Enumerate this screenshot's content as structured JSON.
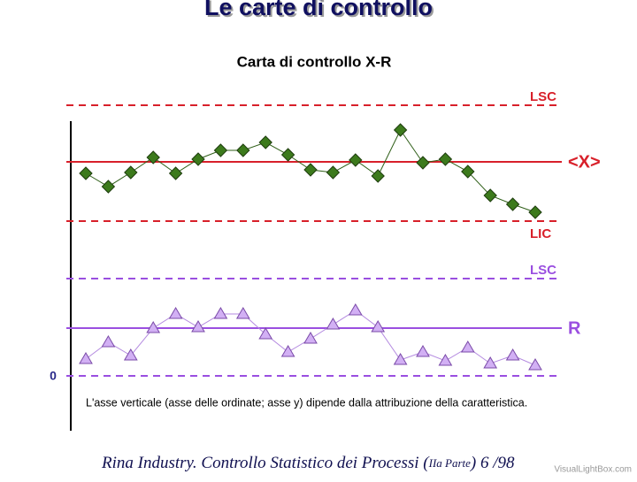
{
  "header": {
    "title": "Le carte di controllo"
  },
  "chart_data": {
    "type": "control",
    "title": "Carta di controllo X-R",
    "ylim": [
      0,
      32
    ],
    "yticks": [
      0
    ],
    "series": [
      {
        "color": "#3c7a1c",
        "line_color": "#2f5f18",
        "marker": "diamond",
        "values": [
          22.9,
          21.4,
          23.0,
          24.7,
          22.9,
          24.5,
          25.5,
          25.5,
          26.4,
          25.0,
          23.3,
          23.0,
          24.4,
          22.6,
          27.8,
          24.1,
          24.5,
          23.1,
          20.4,
          19.4,
          18.5
        ],
        "limits": [
          {
            "label": "LSC",
            "value": 30.6,
            "style": "dashed",
            "label_position": "above"
          },
          {
            "label": "<X>",
            "value": 24.2,
            "style": "solid",
            "label_position": "right"
          },
          {
            "label": "LIC",
            "value": 17.5,
            "style": "dashed",
            "label_position": "below"
          }
        ],
        "limit_color": "#d8202a"
      },
      {
        "color": "#d2b0f4",
        "line_color": "#b48ae0",
        "marker": "triangle",
        "values": [
          1.9,
          3.8,
          2.3,
          5.4,
          7.0,
          5.5,
          7.0,
          7.0,
          4.7,
          2.7,
          4.2,
          5.8,
          7.4,
          5.5,
          1.8,
          2.7,
          1.7,
          3.2,
          1.4,
          2.3,
          1.2
        ],
        "limits": [
          {
            "label": "LSC",
            "value": 11.0,
            "style": "dashed",
            "label_position": "above"
          },
          {
            "label": "R",
            "value": 5.4,
            "style": "solid",
            "label_position": "right"
          },
          {
            "label": "",
            "value": 0,
            "style": "dashed",
            "label_position": "none"
          }
        ],
        "limit_color": "#9a4fe0"
      }
    ],
    "note": "L'asse verticale (asse delle ordinate; asse y) dipende dalla attribuzione della caratteristica."
  },
  "footer": {
    "text_before": "Rina Industry. Controllo Statistico dei Processi (",
    "text_small": "IIa Parte",
    "text_after": ") 6 /98"
  },
  "watermark": "VisualLightBox.com"
}
